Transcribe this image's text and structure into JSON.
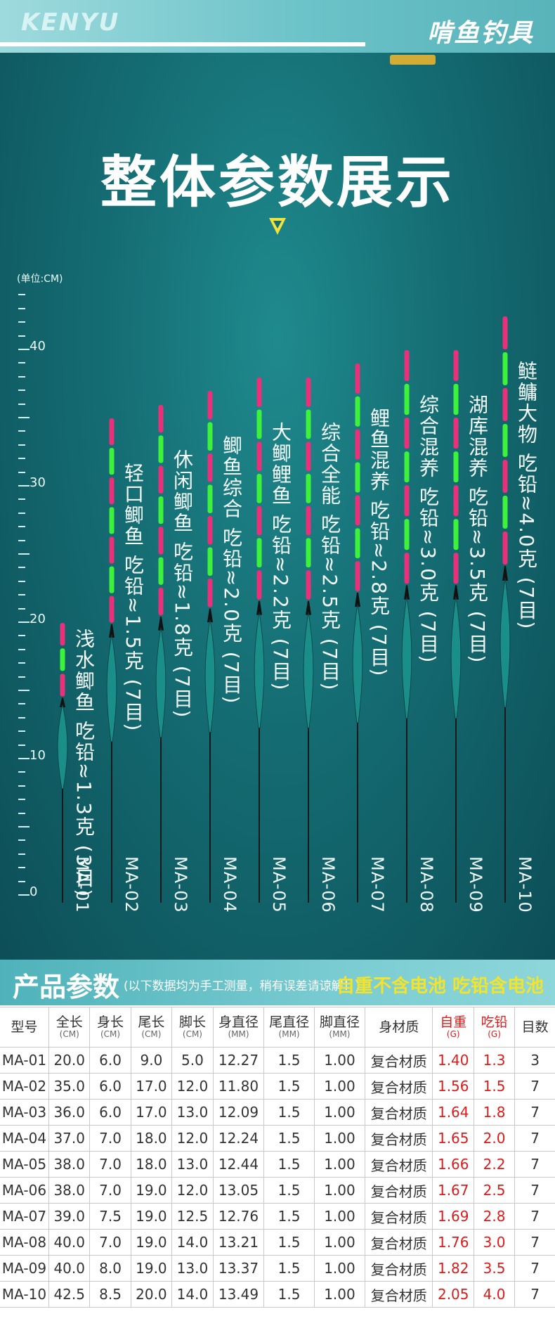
{
  "header": {
    "brand": "KENYU",
    "brand_cn": "啃鱼钓具"
  },
  "title": "整体参数展示",
  "unit_label": "(单位:CM)",
  "ruler_labels": [
    "40",
    "30",
    "20",
    "10",
    "0"
  ],
  "floats": [
    {
      "model": "MA-01",
      "length_cm": 20.0,
      "label": "浅水鲫鱼 吃铅≈1.3克 (3目)",
      "eyes": 3
    },
    {
      "model": "MA-02",
      "length_cm": 35.0,
      "label": "轻口鲫鱼 吃铅≈1.5克 (7目)",
      "eyes": 7
    },
    {
      "model": "MA-03",
      "length_cm": 36.0,
      "label": "休闲鲫鱼 吃铅≈1.8克 (7目)",
      "eyes": 7
    },
    {
      "model": "MA-04",
      "length_cm": 37.0,
      "label": "鲫鱼综合 吃铅≈2.0克 (7目)",
      "eyes": 7
    },
    {
      "model": "MA-05",
      "length_cm": 38.0,
      "label": "大鲫鲤鱼 吃铅≈2.2克 (7目)",
      "eyes": 7
    },
    {
      "model": "MA-06",
      "length_cm": 38.0,
      "label": "综合全能 吃铅≈2.5克 (7目)",
      "eyes": 7
    },
    {
      "model": "MA-07",
      "length_cm": 39.0,
      "label": "鲤鱼混养 吃铅≈2.8克 (7目)",
      "eyes": 7
    },
    {
      "model": "MA-08",
      "length_cm": 40.0,
      "label": "综合混养 吃铅≈3.0克 (7目)",
      "eyes": 7
    },
    {
      "model": "MA-09",
      "length_cm": 40.0,
      "label": "湖库混养 吃铅≈3.5克 (7目)",
      "eyes": 7
    },
    {
      "model": "MA-10",
      "length_cm": 42.5,
      "label": "鲢鳙大物 吃铅≈4.0克 (7目)",
      "eyes": 7
    }
  ],
  "params": {
    "title": "产品参数",
    "note": "(以下数据均为手工测量，稍有误差请谅解！)",
    "right_note": "自重不含电池 吃铅含电池",
    "columns": [
      {
        "name": "型号",
        "unit": ""
      },
      {
        "name": "全长",
        "unit": "(CM)"
      },
      {
        "name": "身长",
        "unit": "(CM)"
      },
      {
        "name": "尾长",
        "unit": "(CM)"
      },
      {
        "name": "脚长",
        "unit": "(CM)"
      },
      {
        "name": "身直径",
        "unit": "(MM)"
      },
      {
        "name": "尾直径",
        "unit": "(MM)"
      },
      {
        "name": "脚直径",
        "unit": "(MM)"
      },
      {
        "name": "身材质",
        "unit": ""
      },
      {
        "name": "自重",
        "unit": "(G)"
      },
      {
        "name": "吃铅",
        "unit": "(G)"
      },
      {
        "name": "目数",
        "unit": ""
      }
    ],
    "rows": [
      [
        "MA-01",
        "20.0",
        "6.0",
        "9.0",
        "5.0",
        "12.27",
        "1.5",
        "1.00",
        "复合材质",
        "1.40",
        "1.3",
        "3"
      ],
      [
        "MA-02",
        "35.0",
        "6.0",
        "17.0",
        "12.0",
        "11.80",
        "1.5",
        "1.00",
        "复合材质",
        "1.56",
        "1.5",
        "7"
      ],
      [
        "MA-03",
        "36.0",
        "6.0",
        "17.0",
        "13.0",
        "12.09",
        "1.5",
        "1.00",
        "复合材质",
        "1.64",
        "1.8",
        "7"
      ],
      [
        "MA-04",
        "37.0",
        "7.0",
        "18.0",
        "12.0",
        "12.24",
        "1.5",
        "1.00",
        "复合材质",
        "1.65",
        "2.0",
        "7"
      ],
      [
        "MA-05",
        "38.0",
        "7.0",
        "18.0",
        "13.0",
        "12.44",
        "1.5",
        "1.00",
        "复合材质",
        "1.66",
        "2.2",
        "7"
      ],
      [
        "MA-06",
        "38.0",
        "7.0",
        "19.0",
        "12.0",
        "13.05",
        "1.5",
        "1.00",
        "复合材质",
        "1.67",
        "2.5",
        "7"
      ],
      [
        "MA-07",
        "39.0",
        "7.5",
        "19.0",
        "12.5",
        "12.76",
        "1.5",
        "1.00",
        "复合材质",
        "1.69",
        "2.8",
        "7"
      ],
      [
        "MA-08",
        "40.0",
        "7.0",
        "19.0",
        "14.0",
        "13.21",
        "1.5",
        "1.00",
        "复合材质",
        "1.76",
        "3.0",
        "7"
      ],
      [
        "MA-09",
        "40.0",
        "8.0",
        "19.0",
        "13.0",
        "13.37",
        "1.5",
        "1.00",
        "复合材质",
        "1.82",
        "3.5",
        "7"
      ],
      [
        "MA-10",
        "42.5",
        "8.5",
        "20.0",
        "14.0",
        "13.49",
        "1.5",
        "1.00",
        "复合材质",
        "2.05",
        "4.0",
        "7"
      ]
    ]
  },
  "colors": {
    "tip_pink": "#e8317a",
    "tip_green": "#3df23a",
    "body": "#1a8f8a",
    "accent_yellow": "#f3e32a",
    "red_value": "#e01a1a"
  }
}
